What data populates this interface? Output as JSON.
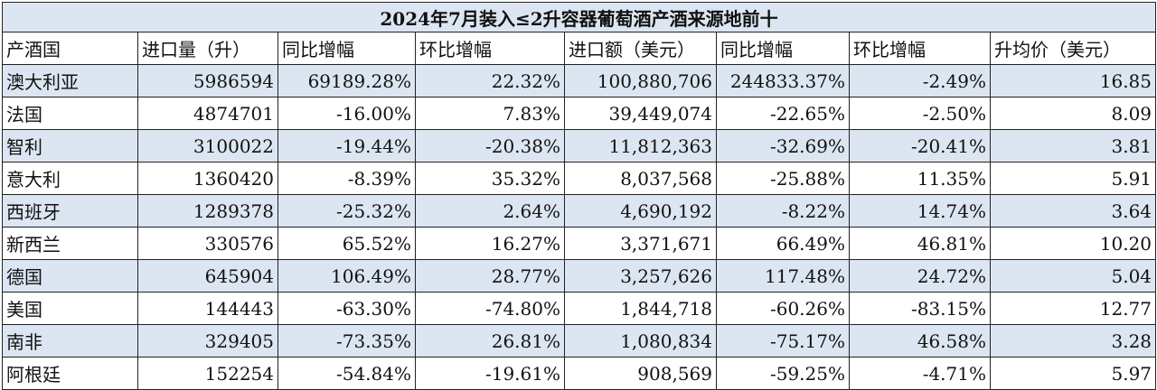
{
  "title": "2024年7月装入≤2升容器葡萄酒产酒来源地前十",
  "headers": [
    "产酒国",
    "进口量（升）",
    "同比增幅",
    "环比增幅",
    "进口额（美元）",
    "同比增幅",
    "环比增幅",
    "升均价（美元）"
  ],
  "rows": [
    [
      "澳大利亚",
      "5986594",
      "69189.28%",
      "22.32%",
      "100,880,706",
      "244833.37%",
      "-2.49%",
      "16.85"
    ],
    [
      "法国",
      "4874701",
      "-16.00%",
      "7.83%",
      "39,449,074",
      "-22.65%",
      "-2.50%",
      "8.09"
    ],
    [
      "智利",
      "3100022",
      "-19.44%",
      "-20.38%",
      "11,812,363",
      "-32.69%",
      "-20.41%",
      "3.81"
    ],
    [
      "意大利",
      "1360420",
      "-8.39%",
      "35.32%",
      "8,037,568",
      "-25.88%",
      "11.35%",
      "5.91"
    ],
    [
      "西班牙",
      "1289378",
      "-25.32%",
      "2.64%",
      "4,690,192",
      "-8.22%",
      "14.74%",
      "3.64"
    ],
    [
      "新西兰",
      "330576",
      "65.52%",
      "16.27%",
      "3,371,671",
      "66.49%",
      "46.81%",
      "10.20"
    ],
    [
      "德国",
      "645904",
      "106.49%",
      "28.77%",
      "3,257,626",
      "117.48%",
      "24.72%",
      "5.04"
    ],
    [
      "美国",
      "144443",
      "-63.30%",
      "-74.80%",
      "1,844,718",
      "-60.26%",
      "-83.15%",
      "12.77"
    ],
    [
      "南非",
      "329405",
      "-73.35%",
      "26.81%",
      "1,080,834",
      "-75.17%",
      "46.58%",
      "3.28"
    ],
    [
      "阿根廷",
      "152254",
      "-54.84%",
      "-19.61%",
      "908,569",
      "-59.25%",
      "-4.71%",
      "5.97"
    ]
  ],
  "colors": {
    "stripe": "#dce6f2",
    "border": "#222222",
    "text": "#111111"
  }
}
